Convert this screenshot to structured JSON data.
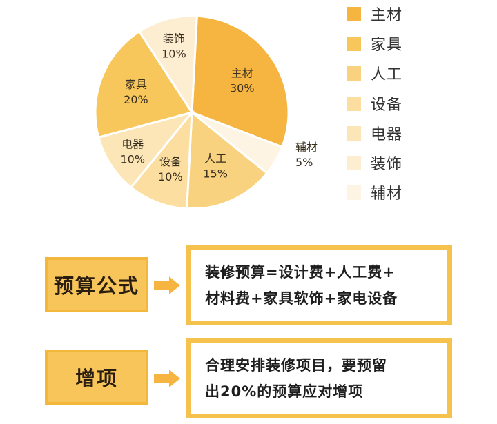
{
  "chart_data": {
    "type": "pie",
    "slices": [
      {
        "label": "主材",
        "value": 30,
        "value_label": "30%",
        "color": "#f5b540"
      },
      {
        "label": "辅材",
        "value": 5,
        "value_label": "5%",
        "color": "#fdf4e3"
      },
      {
        "label": "人工",
        "value": 15,
        "value_label": "15%",
        "color": "#f9d27f"
      },
      {
        "label": "设备",
        "value": 10,
        "value_label": "10%",
        "color": "#fbdea0"
      },
      {
        "label": "电器",
        "value": 10,
        "value_label": "10%",
        "color": "#fce6b8"
      },
      {
        "label": "家具",
        "value": 20,
        "value_label": "20%",
        "color": "#f7c75c"
      },
      {
        "label": "装饰",
        "value": 10,
        "value_label": "10%",
        "color": "#fdeed2"
      }
    ],
    "legend": [
      {
        "label": "主材",
        "color": "#f5b540"
      },
      {
        "label": "家具",
        "color": "#f7c75c"
      },
      {
        "label": "人工",
        "color": "#f9d27f"
      },
      {
        "label": "设备",
        "color": "#fbdea0"
      },
      {
        "label": "电器",
        "color": "#fce6b8"
      },
      {
        "label": "装饰",
        "color": "#fdeed2"
      },
      {
        "label": "辅材",
        "color": "#fdf4e3"
      }
    ],
    "legend_position": "right"
  },
  "formula": {
    "tag": "预算公式",
    "lines": [
      "装修预算=设计费+人工费+",
      "材料费+家具软饰+家电设备"
    ]
  },
  "extra": {
    "tag": "增项",
    "lines": [
      "合理安排装修项目，要预留",
      "出20%的预算应对增项"
    ]
  },
  "colors": {
    "accent": "#f5c24d",
    "tag_fill": "#f7c55a"
  }
}
